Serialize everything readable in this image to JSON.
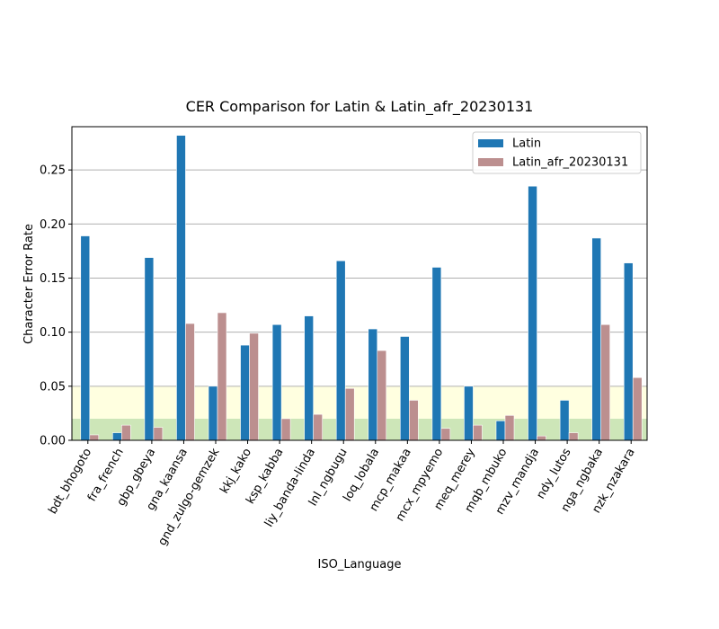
{
  "chart_data": {
    "type": "bar",
    "title": "CER Comparison for Latin & Latin_afr_20230131",
    "xlabel": "ISO_Language",
    "ylabel": "Character Error Rate",
    "ylim": [
      0,
      0.29
    ],
    "yticks": [
      "0.00",
      "0.05",
      "0.10",
      "0.15",
      "0.20",
      "0.25"
    ],
    "ytick_values": [
      0,
      0.05,
      0.1,
      0.15,
      0.2,
      0.25
    ],
    "grid": "horizontal",
    "legend_position": "top-right",
    "bands": [
      {
        "from": 0,
        "to": 0.02,
        "color": "#cde6b8"
      },
      {
        "from": 0.02,
        "to": 0.05,
        "color": "#ffffe0"
      }
    ],
    "categories": [
      "bdt_bhogoto",
      "fra_french",
      "gbp_gbeya",
      "gna_kaansa",
      "gnd_zulgo-gemzek",
      "kkj_kako",
      "ksp_kabba",
      "liy_banda-linda",
      "lnl_ngbugu",
      "loq_lobala",
      "mcp_makaa",
      "mcx_mpyemo",
      "meq_merey",
      "mqb_mbuko",
      "mzv_mandja",
      "ndy_lutos",
      "nga_ngbaka",
      "nzk_nzakara"
    ],
    "series": [
      {
        "name": "Latin",
        "color": "#1f77b4",
        "values": [
          0.189,
          0.007,
          0.169,
          0.282,
          0.05,
          0.088,
          0.107,
          0.115,
          0.166,
          0.103,
          0.096,
          0.16,
          0.05,
          0.018,
          0.235,
          0.037,
          0.187,
          0.164
        ]
      },
      {
        "name": "Latin_afr_20230131",
        "color": "#bc8f8f",
        "values": [
          0.005,
          0.014,
          0.012,
          0.108,
          0.118,
          0.099,
          0.02,
          0.024,
          0.048,
          0.083,
          0.037,
          0.011,
          0.014,
          0.023,
          0.004,
          0.007,
          0.107,
          0.058
        ]
      }
    ]
  }
}
